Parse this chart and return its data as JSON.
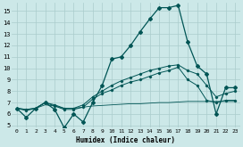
{
  "xlabel": "Humidex (Indice chaleur)",
  "bg_color": "#cce8e8",
  "grid_color": "#aacccc",
  "line_color": "#005555",
  "xlim": [
    -0.5,
    23.5
  ],
  "ylim": [
    4.8,
    15.7
  ],
  "yticks": [
    5,
    6,
    7,
    8,
    9,
    10,
    11,
    12,
    13,
    14,
    15
  ],
  "xticks": [
    0,
    1,
    2,
    3,
    4,
    5,
    6,
    7,
    8,
    9,
    10,
    11,
    12,
    13,
    14,
    15,
    16,
    17,
    18,
    19,
    20,
    21,
    22,
    23
  ],
  "x": [
    0,
    1,
    2,
    3,
    4,
    5,
    6,
    7,
    8,
    9,
    10,
    11,
    12,
    13,
    14,
    15,
    16,
    17,
    18,
    19,
    20,
    21,
    22,
    23
  ],
  "series1": [
    6.5,
    5.7,
    6.5,
    7.0,
    6.4,
    4.8,
    6.0,
    5.3,
    7.0,
    8.5,
    10.8,
    11.0,
    12.0,
    13.2,
    14.3,
    15.3,
    15.3,
    15.5,
    12.3,
    10.2,
    9.5,
    6.0,
    8.3,
    8.3
  ],
  "series2": [
    6.5,
    6.3,
    6.5,
    7.0,
    6.7,
    6.4,
    6.4,
    6.6,
    7.3,
    7.8,
    8.1,
    8.5,
    8.8,
    9.0,
    9.3,
    9.6,
    9.8,
    10.1,
    9.0,
    8.5,
    7.2,
    7.0,
    7.2,
    7.2
  ],
  "series3": [
    6.5,
    6.4,
    6.5,
    7.0,
    6.8,
    6.5,
    6.5,
    6.8,
    7.5,
    8.0,
    8.5,
    8.9,
    9.2,
    9.5,
    9.8,
    10.0,
    10.2,
    10.3,
    9.8,
    9.5,
    8.5,
    7.5,
    7.8,
    8.0
  ],
  "series4": [
    6.5,
    6.4,
    6.5,
    6.8,
    6.7,
    6.5,
    6.5,
    6.6,
    6.7,
    6.75,
    6.8,
    6.85,
    6.9,
    6.9,
    6.95,
    7.0,
    7.0,
    7.05,
    7.1,
    7.1,
    7.1,
    7.1,
    7.1,
    7.1
  ],
  "markersize": 2.0
}
